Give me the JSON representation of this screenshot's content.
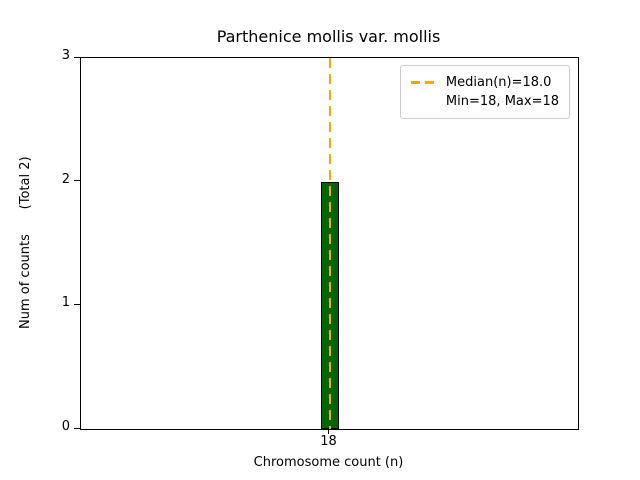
{
  "title": "Parthenice mollis var. mollis",
  "legend": {
    "median_label": "Median(n)=18.0",
    "minmax_label": "Min=18, Max=18"
  },
  "colors": {
    "bar_fill": "#006400",
    "bar_edge": "#000000",
    "median_line": "#ffa500",
    "legend_border": "#cccccc"
  },
  "chart_data": {
    "type": "bar",
    "title": "Parthenice mollis var. mollis",
    "xlabel": "Chromosome count (n)",
    "ylabel": "Num of counts      (Total 2)",
    "categories": [
      "18"
    ],
    "values": [
      2
    ],
    "ylim": [
      0,
      3
    ],
    "yticks": [
      0,
      1,
      2,
      3
    ],
    "median": 18.0,
    "min": 18,
    "max": 18,
    "total": 2,
    "grid": false,
    "legend_position": "upper right",
    "annotations": [
      "Median(n)=18.0",
      "Min=18, Max=18"
    ]
  }
}
